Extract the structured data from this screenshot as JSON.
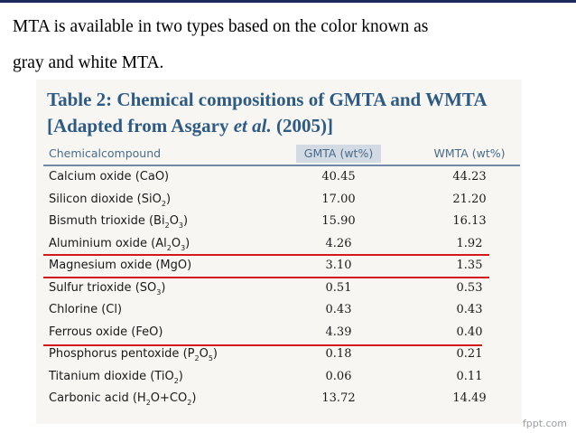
{
  "intro": {
    "line1": "MTA is available in two types based on the color known as",
    "line2": "gray and white MTA."
  },
  "table": {
    "title_line1": "Table 2: Chemical compositions of GMTA and WMTA",
    "title_line2_prefix": "[Adapted from Asgary ",
    "title_line2_italic": "et al.",
    "title_line2_suffix": " (2005)]",
    "headers": [
      "Chemicalcompound",
      "GMTA (wt%)",
      "WMTA (wt%)"
    ],
    "rows": [
      {
        "name": "Calcium oxide (CaO)",
        "gmta": "40.45",
        "wmta": "44.23"
      },
      {
        "name": "Silicon dioxide (SiO2)",
        "gmta": "17.00",
        "wmta": "21.20"
      },
      {
        "name": "Bismuth trioxide (Bi2O3)",
        "gmta": "15.90",
        "wmta": "16.13"
      },
      {
        "name": "Aluminium oxide (Al2O3)",
        "gmta": "4.26",
        "wmta": "1.92"
      },
      {
        "name": "Magnesium oxide (MgO)",
        "gmta": "3.10",
        "wmta": "1.35"
      },
      {
        "name": "Sulfur trioxide (SO3)",
        "gmta": "0.51",
        "wmta": "0.53"
      },
      {
        "name": "Chlorine (Cl)",
        "gmta": "0.43",
        "wmta": "0.43"
      },
      {
        "name": "Ferrous oxide (FeO)",
        "gmta": "4.39",
        "wmta": "0.40"
      },
      {
        "name": "Phosphorus pentoxide (P2O5)",
        "gmta": "0.18",
        "wmta": "0.21"
      },
      {
        "name": "Titanium dioxide (TiO2)",
        "gmta": "0.06",
        "wmta": "0.11"
      },
      {
        "name": "Carbonic acid (H2O+CO2)",
        "gmta": "13.72",
        "wmta": "14.49"
      }
    ]
  },
  "colors": {
    "title": "#2d5b84",
    "highlight_line": "#d21a1a",
    "header_highlight": "#d2dae3"
  },
  "footer": "fppt.com"
}
